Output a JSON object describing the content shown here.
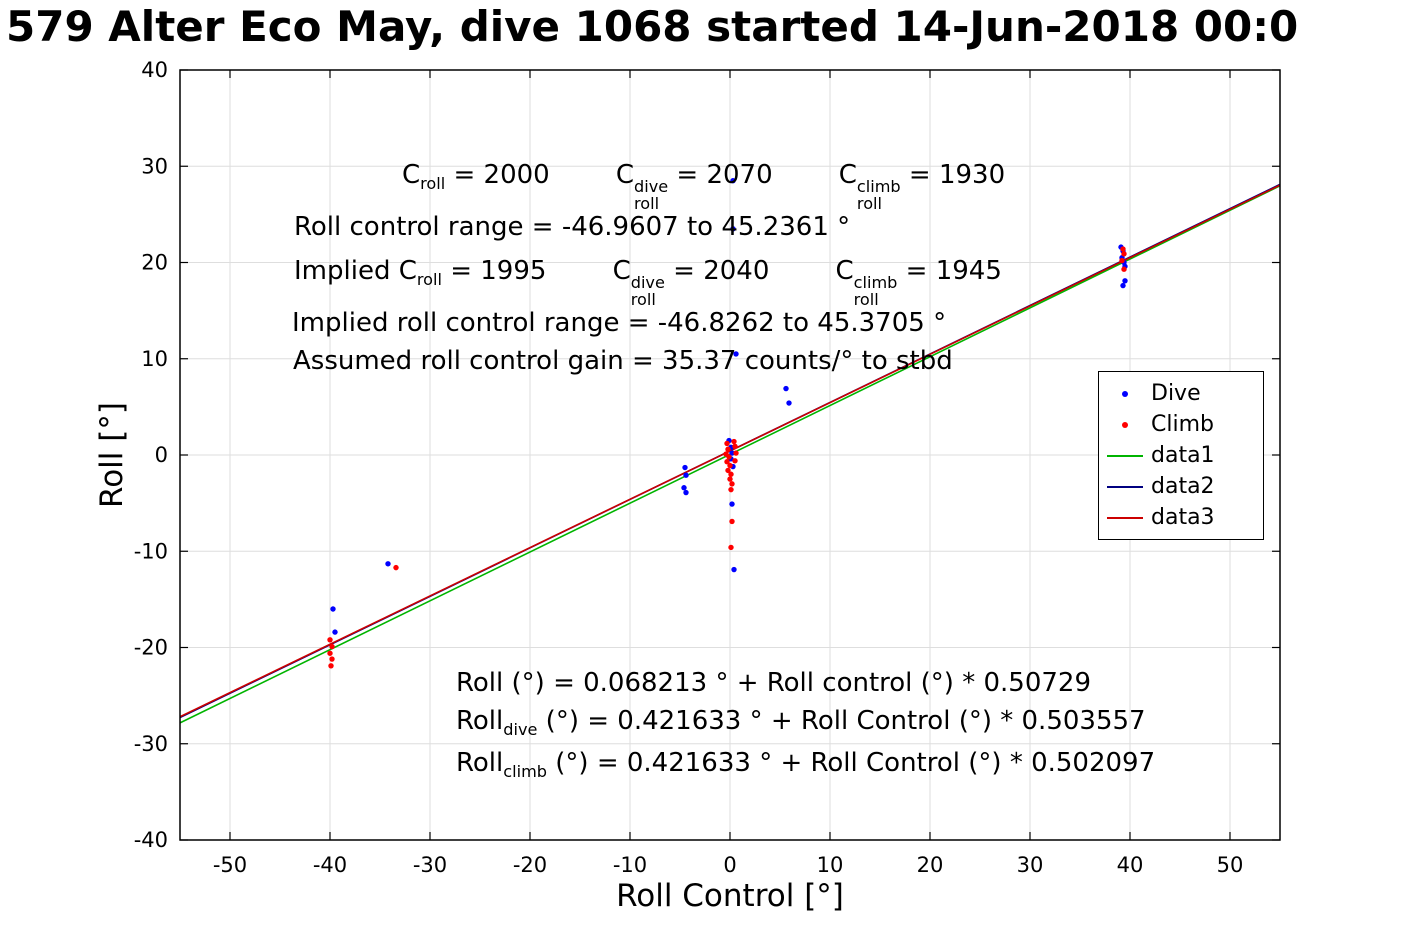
{
  "title": "579 Alter Eco May, dive 1068 started 14-Jun-2018 00:0",
  "chart_data": {
    "type": "scatter",
    "title": "579 Alter Eco May, dive 1068 started 14-Jun-2018 00:0",
    "xlabel": "Roll Control [°]",
    "ylabel": "Roll [°]",
    "xlim": [
      -55,
      55
    ],
    "ylim": [
      -40,
      40
    ],
    "xticks": [
      -50,
      -40,
      -30,
      -20,
      -10,
      0,
      10,
      20,
      30,
      40,
      50
    ],
    "yticks": [
      -40,
      -30,
      -20,
      -10,
      0,
      10,
      20,
      30,
      40
    ],
    "grid": true,
    "grid_color": "#dedede",
    "legend_position": "right-middle",
    "scatter_series": [
      {
        "name": "Dive",
        "color": "#0000ff",
        "marker": "dot",
        "points": [
          [
            0.3,
            28.5
          ],
          [
            0.3,
            23.5
          ],
          [
            0.6,
            10.5
          ],
          [
            5.6,
            6.9
          ],
          [
            5.9,
            5.4
          ],
          [
            -4.5,
            -1.3
          ],
          [
            -4.4,
            -2.1
          ],
          [
            -4.6,
            -3.4
          ],
          [
            -4.4,
            -3.9
          ],
          [
            -0.1,
            1.5
          ],
          [
            0.1,
            0.8
          ],
          [
            0.2,
            0.2
          ],
          [
            0.1,
            -0.4
          ],
          [
            0.3,
            -1.2
          ],
          [
            0.2,
            -5.1
          ],
          [
            0.4,
            -11.9
          ],
          [
            -39.7,
            -16.0
          ],
          [
            -39.5,
            -18.4
          ],
          [
            -34.2,
            -11.3
          ],
          [
            39.1,
            21.6
          ],
          [
            39.3,
            21.2
          ],
          [
            39.2,
            20.5
          ],
          [
            39.4,
            20.0
          ],
          [
            39.5,
            19.6
          ],
          [
            39.3,
            17.6
          ],
          [
            39.5,
            18.1
          ]
        ]
      },
      {
        "name": "Climb",
        "color": "#ff0000",
        "marker": "dot",
        "points": [
          [
            0.4,
            1.4
          ],
          [
            -0.3,
            1.2
          ],
          [
            -0.2,
            0.6
          ],
          [
            0.5,
            0.9
          ],
          [
            -0.4,
            0.1
          ],
          [
            0.6,
            0.2
          ],
          [
            -0.1,
            -0.2
          ],
          [
            -0.3,
            -0.7
          ],
          [
            0.5,
            -0.6
          ],
          [
            0.0,
            -1.1
          ],
          [
            -0.2,
            -1.6
          ],
          [
            0.1,
            -2.0
          ],
          [
            0.0,
            -2.5
          ],
          [
            0.2,
            -3.0
          ],
          [
            0.1,
            -3.6
          ],
          [
            0.2,
            -6.9
          ],
          [
            0.1,
            -9.6
          ],
          [
            -33.4,
            -11.7
          ],
          [
            -40.0,
            -19.2
          ],
          [
            -39.8,
            -19.9
          ],
          [
            -40.0,
            -20.6
          ],
          [
            -39.8,
            -21.2
          ],
          [
            -39.9,
            -21.9
          ],
          [
            39.3,
            21.4
          ],
          [
            39.4,
            20.9
          ],
          [
            39.2,
            20.2
          ],
          [
            39.4,
            19.3
          ]
        ]
      }
    ],
    "line_series": [
      {
        "name": "data1",
        "color": "#00b400",
        "intercept": 0.068213,
        "slope": 0.50729
      },
      {
        "name": "data2",
        "color": "#000080",
        "intercept": 0.421633,
        "slope": 0.503557
      },
      {
        "name": "data3",
        "color": "#cc0000",
        "intercept": 0.421633,
        "slope": 0.502097
      }
    ],
    "legend": [
      {
        "label": "Dive",
        "type": "dot",
        "color": "#0000ff"
      },
      {
        "label": "Climb",
        "type": "dot",
        "color": "#ff0000"
      },
      {
        "label": "data1",
        "type": "line",
        "color": "#00b400"
      },
      {
        "label": "data2",
        "type": "line",
        "color": "#000080"
      },
      {
        "label": "data3",
        "type": "line",
        "color": "#cc0000"
      }
    ],
    "annotations_top": [
      {
        "segments": [
          {
            "text": "C"
          },
          {
            "sub": "roll"
          },
          {
            "text": " = 2000        "
          },
          {
            "text": "C"
          },
          {
            "sup": "dive",
            "sub": "roll"
          },
          {
            "text": " = 2070        "
          },
          {
            "text": "C"
          },
          {
            "sup": "climb",
            "sub": "roll"
          },
          {
            "text": " = 1930"
          }
        ]
      },
      {
        "segments": [
          {
            "text": "Roll control range = -46.9607 to 45.2361 °"
          }
        ]
      },
      {
        "segments": [
          {
            "text": "Implied C"
          },
          {
            "sub": "roll"
          },
          {
            "text": " = 1995        "
          },
          {
            "text": "C"
          },
          {
            "sup": "dive",
            "sub": "roll"
          },
          {
            "text": " = 2040        "
          },
          {
            "text": "C"
          },
          {
            "sup": "climb",
            "sub": "roll"
          },
          {
            "text": " = 1945"
          }
        ]
      },
      {
        "segments": [
          {
            "text": "Implied roll control range = -46.8262 to 45.3705 °"
          }
        ]
      },
      {
        "segments": [
          {
            "text": "Assumed roll control gain = 35.37 counts/° to stbd"
          }
        ]
      }
    ],
    "annotations_bottom": [
      {
        "segments": [
          {
            "text": "Roll (°) = 0.068213 ° + Roll control (°) * 0.50729"
          }
        ]
      },
      {
        "segments": [
          {
            "text": "Roll"
          },
          {
            "sub": "dive"
          },
          {
            "text": " (°) = 0.421633 ° + Roll Control (°) * 0.503557"
          }
        ]
      },
      {
        "segments": [
          {
            "text": "Roll"
          },
          {
            "sub": "climb"
          },
          {
            "text": " (°) = 0.421633 ° + Roll Control (°) * 0.502097"
          }
        ]
      }
    ]
  }
}
